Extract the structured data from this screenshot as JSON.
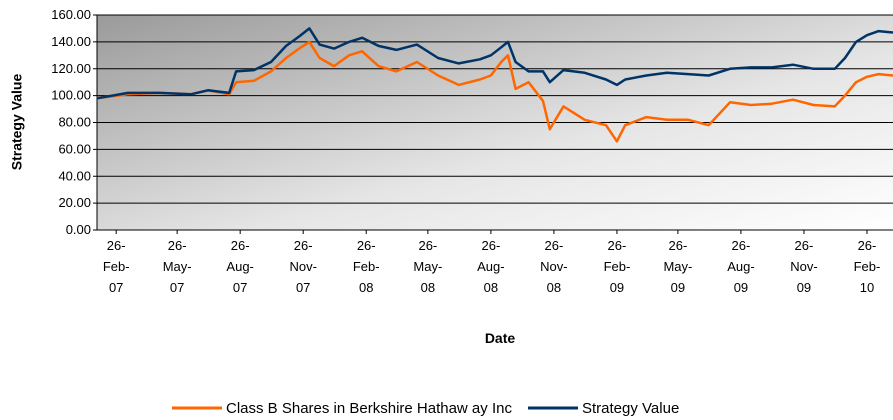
{
  "chart_data": {
    "type": "line",
    "xlabel": "Date",
    "ylabel": "Strategy Value",
    "x": [
      "2007-01-29",
      "2007-03-15",
      "2007-04-30",
      "2007-06-15",
      "2007-07-10",
      "2007-08-10",
      "2007-08-20",
      "2007-09-15",
      "2007-10-10",
      "2007-11-01",
      "2007-11-20",
      "2007-12-05",
      "2007-12-20",
      "2008-01-10",
      "2008-02-01",
      "2008-02-20",
      "2008-03-15",
      "2008-04-10",
      "2008-05-10",
      "2008-06-10",
      "2008-07-10",
      "2008-08-10",
      "2008-08-26",
      "2008-09-10",
      "2008-09-20",
      "2008-10-01",
      "2008-10-20",
      "2008-11-10",
      "2008-11-20",
      "2008-12-10",
      "2009-01-10",
      "2009-02-10",
      "2009-02-26",
      "2009-03-10",
      "2009-04-10",
      "2009-05-10",
      "2009-06-10",
      "2009-07-10",
      "2009-08-10",
      "2009-09-10",
      "2009-10-10",
      "2009-11-10",
      "2009-12-10",
      "2010-01-10",
      "2010-01-25",
      "2010-02-10",
      "2010-02-26",
      "2010-03-15",
      "2010-04-05"
    ],
    "series": [
      {
        "name": "Class B Shares in Berkshire Hathaw ay Inc",
        "color": "#ff6600",
        "values": [
          98,
          101,
          102,
          101,
          104,
          101,
          110,
          111,
          118,
          128,
          135,
          140,
          128,
          122,
          130,
          133,
          122,
          118,
          125,
          115,
          108,
          112,
          115,
          125,
          130,
          105,
          110,
          96,
          75,
          92,
          82,
          78,
          66,
          78,
          84,
          82,
          82,
          78,
          95,
          93,
          94,
          97,
          93,
          92,
          100,
          110,
          114,
          116,
          115
        ]
      },
      {
        "name": "Strategy Value",
        "color": "#003366",
        "values": [
          98,
          102,
          102,
          101,
          104,
          102,
          118,
          119,
          125,
          137,
          144,
          150,
          138,
          135,
          140,
          143,
          137,
          134,
          138,
          128,
          124,
          127,
          130,
          136,
          140,
          125,
          118,
          118,
          110,
          119,
          117,
          112,
          108,
          112,
          115,
          117,
          116,
          115,
          120,
          121,
          121,
          123,
          120,
          120,
          128,
          140,
          145,
          148,
          147
        ]
      }
    ],
    "xlim": [
      "2007-01-29",
      "2010-04-05"
    ],
    "xticks": [
      {
        "value": "2007-02-26",
        "label": "26-Feb-07"
      },
      {
        "value": "2007-05-26",
        "label": "26-May-07"
      },
      {
        "value": "2007-08-26",
        "label": "26-Aug-07"
      },
      {
        "value": "2007-11-26",
        "label": "26-Nov-07"
      },
      {
        "value": "2008-02-26",
        "label": "26-Feb-08"
      },
      {
        "value": "2008-05-26",
        "label": "26-May-08"
      },
      {
        "value": "2008-08-26",
        "label": "26-Aug-08"
      },
      {
        "value": "2008-11-26",
        "label": "26-Nov-08"
      },
      {
        "value": "2009-02-26",
        "label": "26-Feb-09"
      },
      {
        "value": "2009-05-26",
        "label": "26-May-09"
      },
      {
        "value": "2009-08-26",
        "label": "26-Aug-09"
      },
      {
        "value": "2009-11-26",
        "label": "26-Nov-09"
      },
      {
        "value": "2010-02-26",
        "label": "26-Feb-10"
      }
    ],
    "ylim": [
      0,
      160
    ],
    "yticks": [
      {
        "value": 0,
        "label": "0.00"
      },
      {
        "value": 20,
        "label": "20.00"
      },
      {
        "value": 40,
        "label": "40.00"
      },
      {
        "value": 60,
        "label": "60.00"
      },
      {
        "value": 80,
        "label": "80.00"
      },
      {
        "value": 100,
        "label": "100.00"
      },
      {
        "value": 120,
        "label": "120.00"
      },
      {
        "value": 140,
        "label": "140.00"
      },
      {
        "value": 160,
        "label": "160.00"
      }
    ],
    "grid": true,
    "legend": "bottom"
  }
}
